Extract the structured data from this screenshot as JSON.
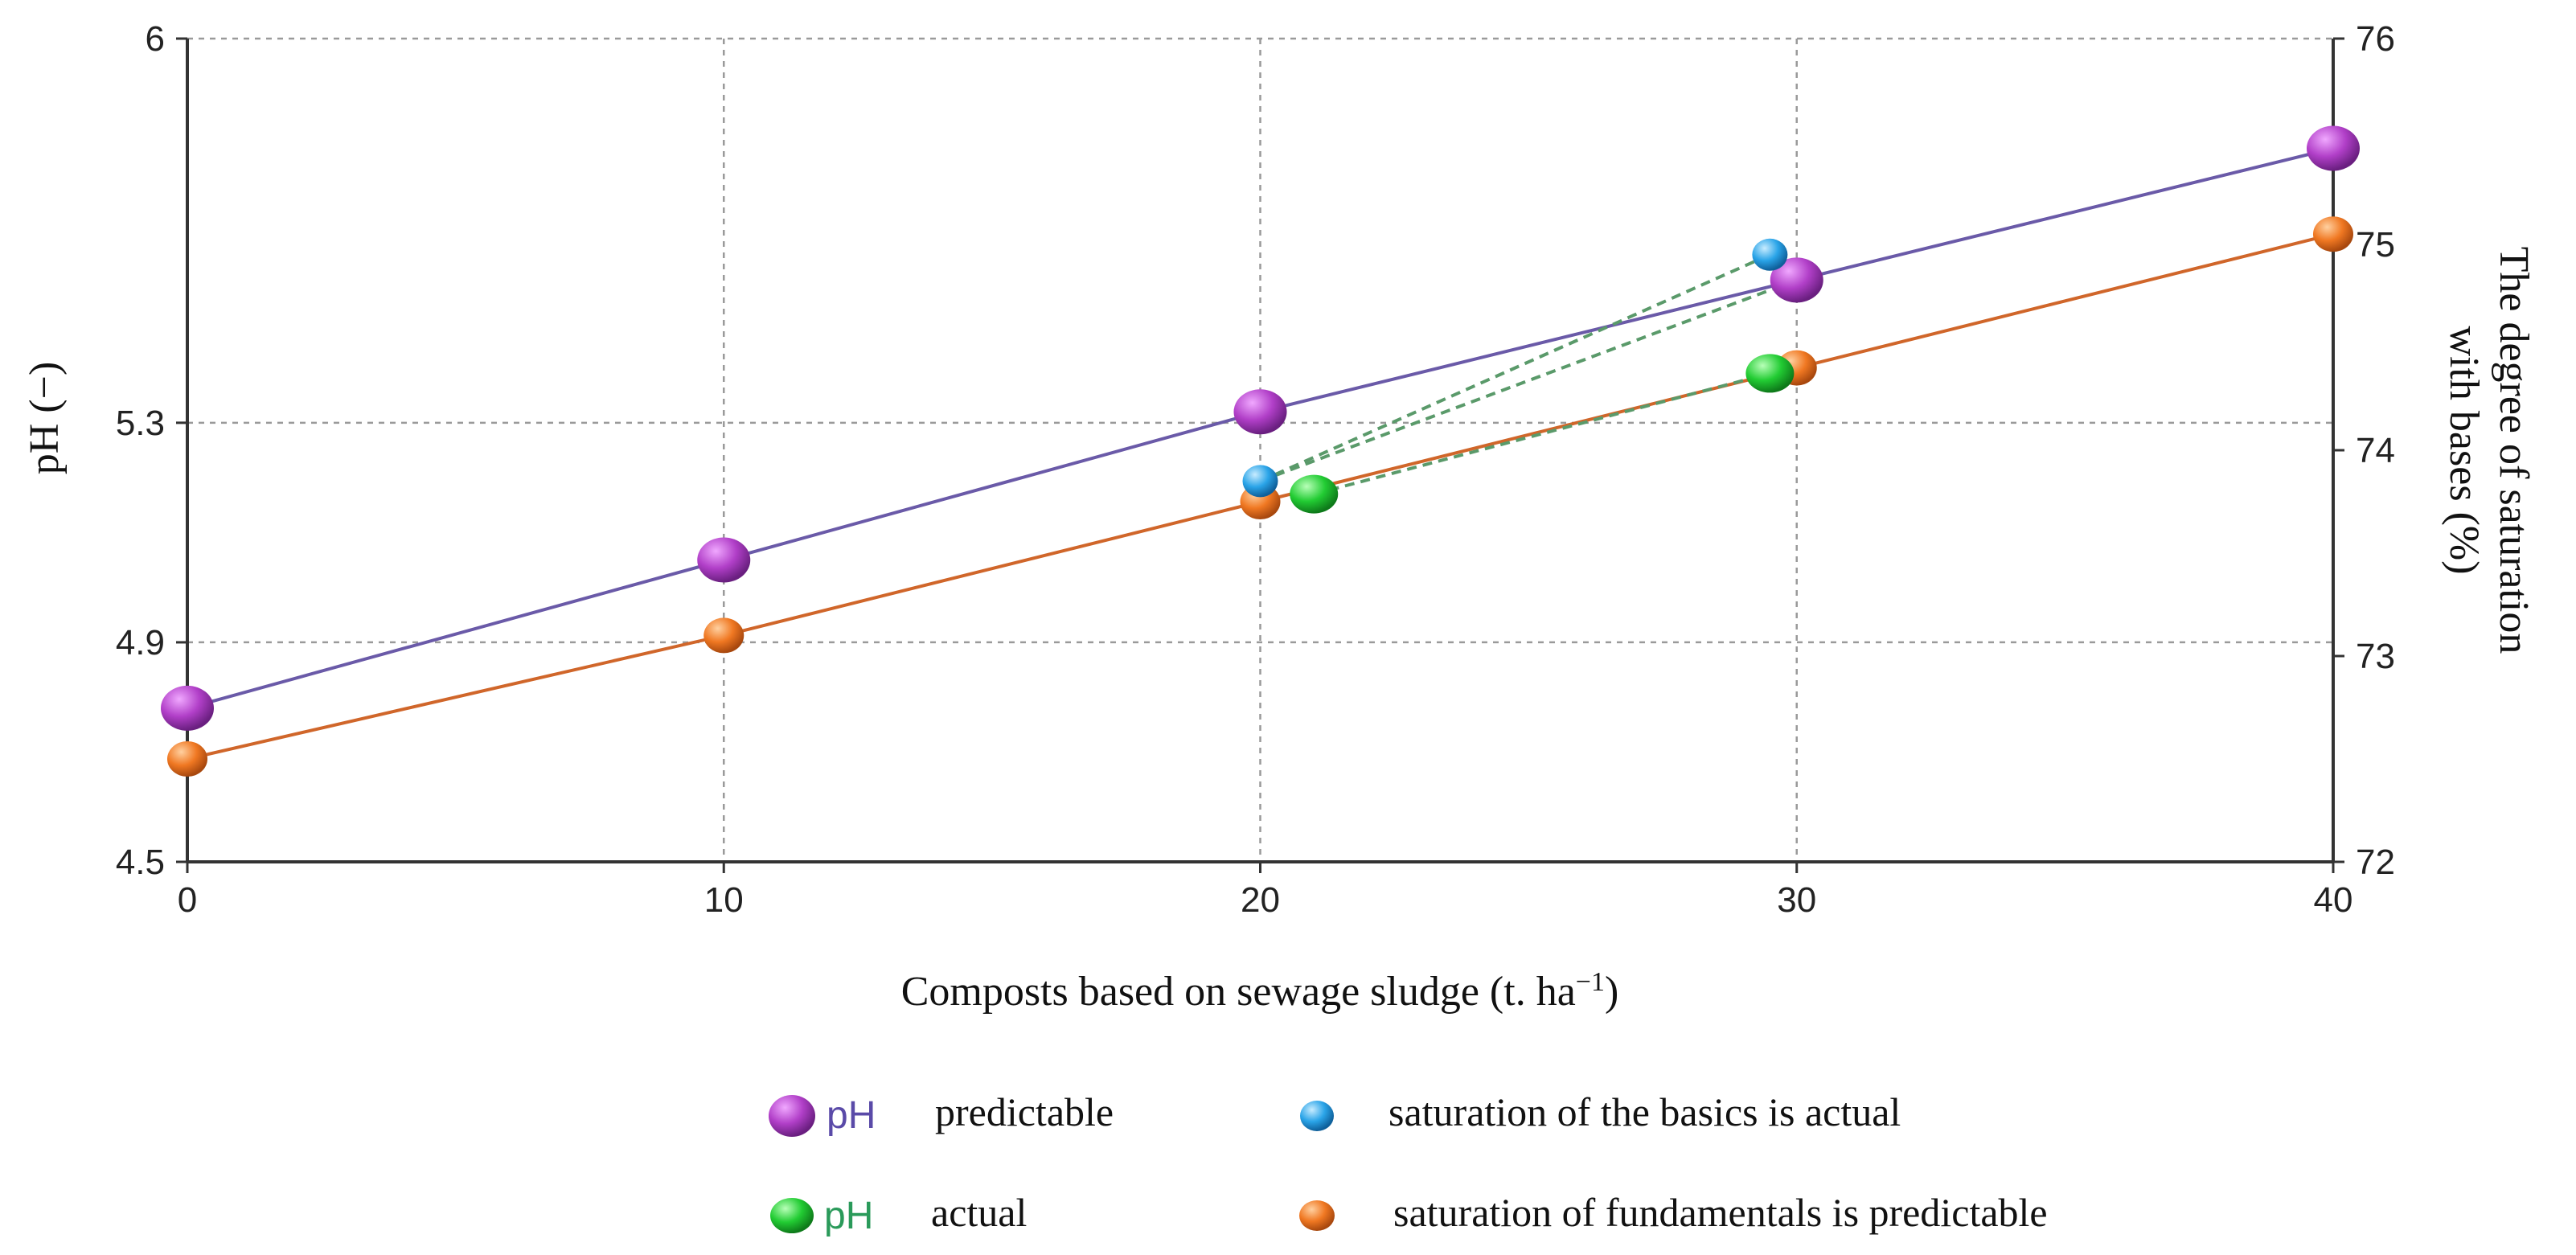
{
  "chart_data": {
    "type": "line",
    "x": [
      0,
      10,
      20,
      30,
      40
    ],
    "xlabel": "Composts based on sewage sludge (t. ha",
    "xlabel_unit_sup": "−1",
    "xlabel_close": ")",
    "xlim": [
      0,
      40
    ],
    "x_ticks": [
      "0",
      "10",
      "20",
      "30",
      "40"
    ],
    "ylabel_left": "pH (−)",
    "ylim_left": [
      4.5,
      6
    ],
    "y_ticks_left": [
      "4.5",
      "4.9",
      "5.3",
      "6"
    ],
    "ylabel_right_line1": "The degree of saturation",
    "ylabel_right_line2": "with bases (%)",
    "ylim_right": [
      72,
      76
    ],
    "y_ticks_right": [
      "72",
      "73",
      "74",
      "75",
      "76"
    ],
    "grid": true,
    "series": [
      {
        "name": "pH predictable",
        "axis": "left",
        "x": [
          0,
          10,
          20,
          30,
          40
        ],
        "values": [
          4.78,
          5.05,
          5.32,
          5.56,
          5.8
        ]
      },
      {
        "name": "pH actual",
        "axis": "left",
        "x": [
          21,
          29.5
        ],
        "values": [
          5.17,
          5.39
        ]
      },
      {
        "name": "saturation of the basics is actual",
        "axis": "right",
        "x": [
          20,
          29.5
        ],
        "values": [
          73.85,
          74.95
        ]
      },
      {
        "name": "saturation of fundamentals is predictable",
        "axis": "right",
        "x": [
          0,
          10,
          20,
          30,
          40
        ],
        "values": [
          72.5,
          73.1,
          73.75,
          74.4,
          75.05
        ]
      }
    ],
    "legend": [
      {
        "marker_label": "pH",
        "label": "predictable",
        "color": "#b13fc8"
      },
      {
        "marker_label": "",
        "label": "saturation of the basics is actual",
        "color": "#2aa4e8"
      },
      {
        "marker_label": "pH",
        "label": "actual",
        "color": "#22cc33"
      },
      {
        "marker_label": "",
        "label": "saturation of fundamentals is predictable",
        "color": "#f07822"
      }
    ],
    "colors": {
      "ph_predictable_line": "#6a5aa8",
      "saturation_predictable_line": "#d0662a",
      "actual_dashed": "#5a9a6a",
      "legend_ph_predictable_text": "#5a4aa8",
      "legend_ph_actual_text": "#2a9a5a"
    }
  }
}
